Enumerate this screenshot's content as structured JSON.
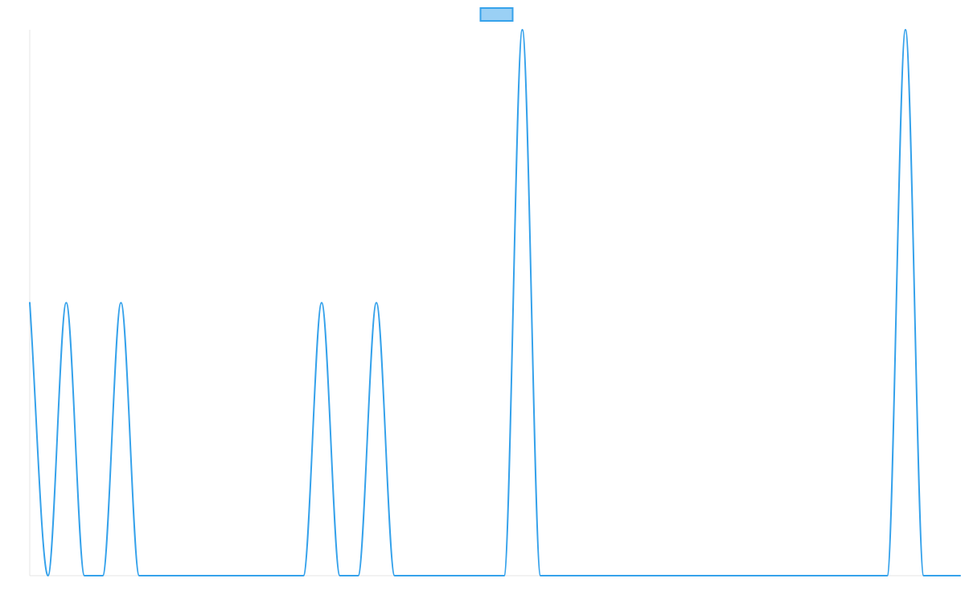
{
  "chart_data": {
    "type": "line",
    "title": "",
    "xlabel": "",
    "ylabel": "",
    "grid": false,
    "legend": {
      "position": "top-center",
      "entries": [
        {
          "label": "",
          "color": "#36a2eb",
          "fill": "#9ad0f5"
        }
      ]
    },
    "x": [
      0,
      1,
      2,
      3,
      4,
      5,
      6,
      7,
      8,
      9,
      10,
      11,
      12,
      13,
      14,
      15,
      16,
      17,
      18,
      19,
      20,
      21,
      22,
      23,
      24,
      25,
      26,
      27,
      28,
      29,
      30,
      31,
      32,
      33,
      34,
      35,
      36,
      37,
      38,
      39,
      40,
      41,
      42,
      43,
      44,
      45,
      46,
      47,
      48,
      49,
      50,
      51
    ],
    "xlim": [
      0,
      51
    ],
    "ylim": [
      0,
      2
    ],
    "series": [
      {
        "color": "#36a2eb",
        "values": [
          1,
          0,
          1,
          0,
          0,
          1,
          0,
          0,
          0,
          0,
          0,
          0,
          0,
          0,
          0,
          0,
          1,
          0,
          0,
          1,
          0,
          0,
          0,
          0,
          0,
          0,
          0,
          2,
          0,
          0,
          0,
          0,
          0,
          0,
          0,
          0,
          0,
          0,
          0,
          0,
          0,
          0,
          0,
          0,
          0,
          0,
          0,
          0,
          2,
          0,
          0,
          0
        ]
      }
    ]
  }
}
